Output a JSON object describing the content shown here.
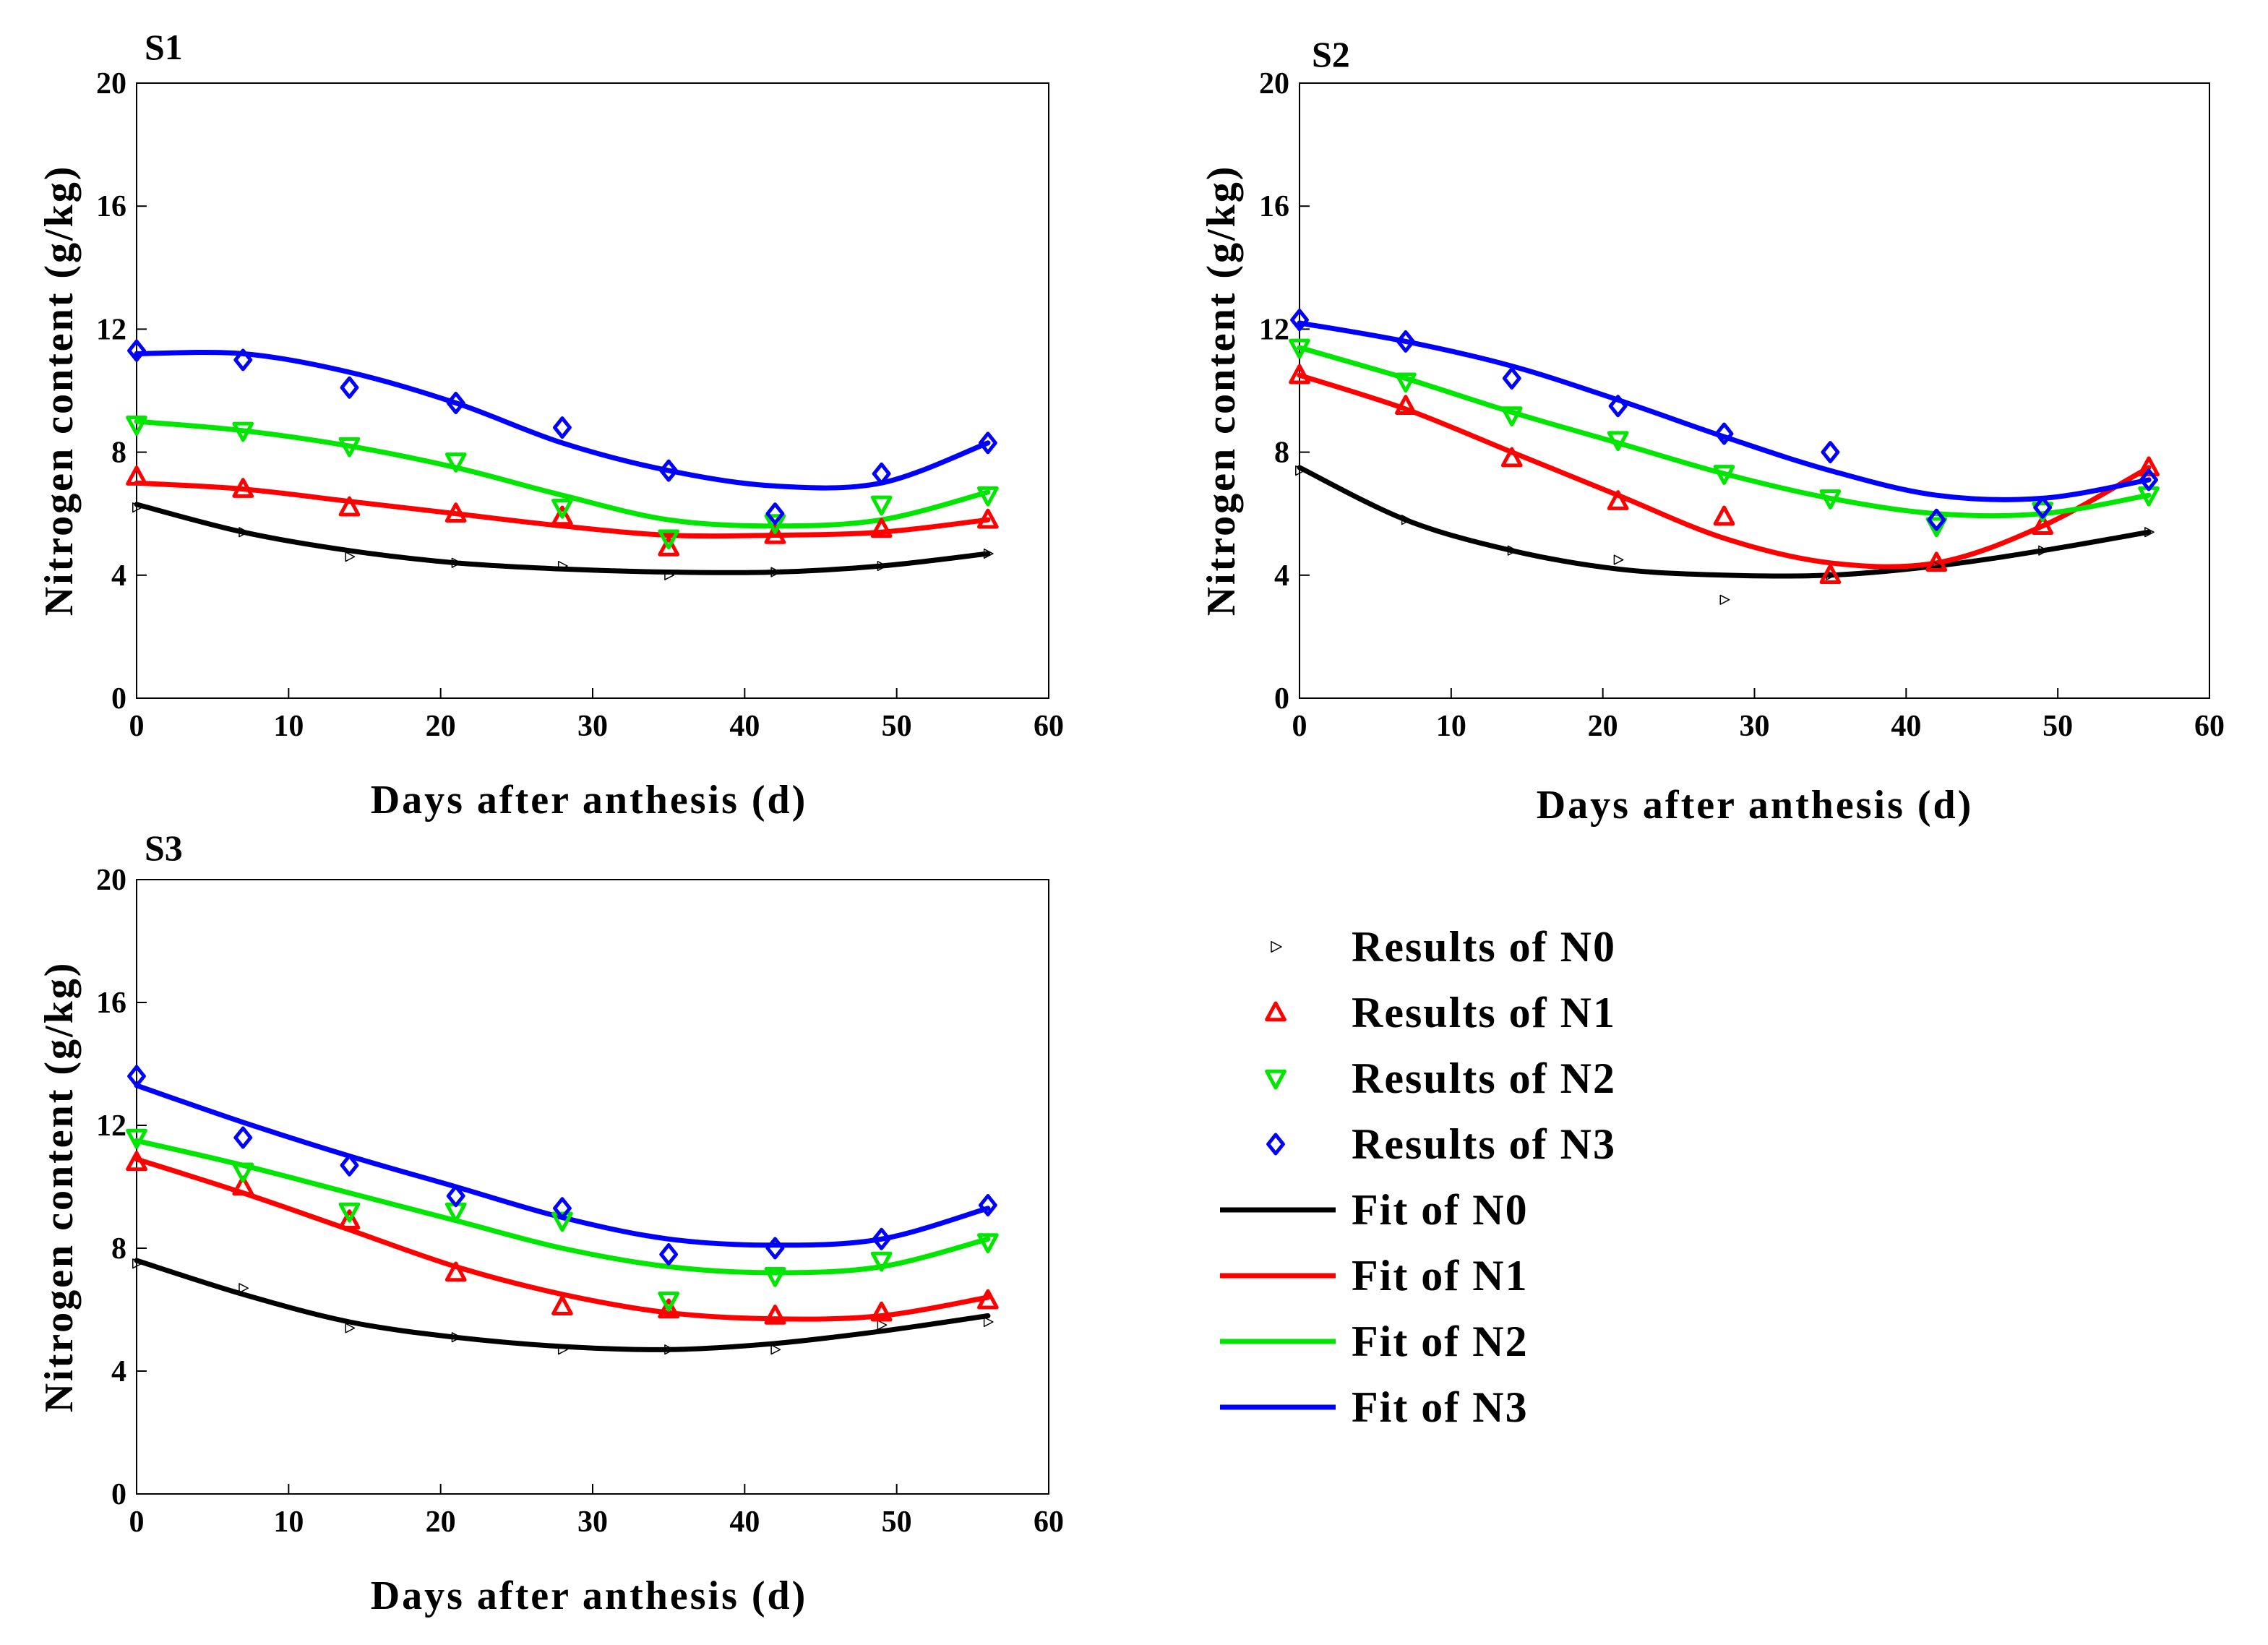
{
  "chart_data": [
    {
      "type": "line",
      "title": "S1",
      "xlabel": "Days after anthesis (d)",
      "ylabel": "Nitrogen content (g/kg)",
      "xlim": [
        0,
        60
      ],
      "ylim": [
        0,
        20
      ],
      "xticks": [
        0,
        10,
        20,
        30,
        40,
        50,
        60
      ],
      "yticks": [
        0,
        4,
        8,
        12,
        16,
        20
      ],
      "x": [
        0,
        7,
        14,
        21,
        28,
        35,
        42,
        49,
        56
      ],
      "series": [
        {
          "name": "N0",
          "results": [
            6.2,
            5.4,
            4.6,
            4.4,
            4.3,
            4.0,
            4.1,
            4.3,
            4.7
          ],
          "fit": [
            6.3,
            5.4,
            4.8,
            4.4,
            4.2,
            4.1,
            4.1,
            4.3,
            4.7
          ]
        },
        {
          "name": "N1",
          "results": [
            7.2,
            6.8,
            6.2,
            6.0,
            5.9,
            4.9,
            5.3,
            5.5,
            5.8
          ],
          "fit": [
            7.0,
            6.8,
            6.4,
            6.0,
            5.6,
            5.3,
            5.3,
            5.4,
            5.8
          ]
        },
        {
          "name": "N2",
          "results": [
            8.9,
            8.7,
            8.2,
            7.7,
            6.2,
            5.2,
            5.7,
            6.3,
            6.6
          ],
          "fit": [
            9.0,
            8.7,
            8.2,
            7.5,
            6.6,
            5.8,
            5.6,
            5.8,
            6.7
          ]
        },
        {
          "name": "N3",
          "results": [
            11.3,
            11.0,
            10.1,
            9.6,
            8.8,
            7.4,
            6.0,
            7.3,
            8.3
          ],
          "fit": [
            11.2,
            11.2,
            10.6,
            9.6,
            8.3,
            7.4,
            6.9,
            7.0,
            8.3
          ]
        }
      ]
    },
    {
      "type": "line",
      "title": "S2",
      "xlabel": "Days after anthesis (d)",
      "ylabel": "Nitrogen content (g/kg)",
      "xlim": [
        0,
        60
      ],
      "ylim": [
        0,
        20
      ],
      "xticks": [
        0,
        10,
        20,
        30,
        40,
        50,
        60
      ],
      "yticks": [
        0,
        4,
        8,
        12,
        16,
        20
      ],
      "x": [
        0,
        7,
        14,
        21,
        28,
        35,
        42,
        49,
        56
      ],
      "series": [
        {
          "name": "N0",
          "results": [
            7.4,
            5.8,
            4.8,
            4.5,
            3.2,
            4.0,
            4.3,
            4.8,
            5.4
          ],
          "fit": [
            7.5,
            5.8,
            4.8,
            4.2,
            4.0,
            4.0,
            4.3,
            4.8,
            5.4
          ]
        },
        {
          "name": "N1",
          "results": [
            10.5,
            9.5,
            7.8,
            6.4,
            5.9,
            4.0,
            4.4,
            5.6,
            7.5
          ],
          "fit": [
            10.5,
            9.4,
            8.0,
            6.6,
            5.2,
            4.4,
            4.4,
            5.6,
            7.5
          ]
        },
        {
          "name": "N2",
          "results": [
            11.4,
            10.3,
            9.2,
            8.4,
            7.3,
            6.5,
            5.6,
            6.1,
            6.6
          ],
          "fit": [
            11.4,
            10.4,
            9.3,
            8.3,
            7.3,
            6.5,
            6.0,
            6.0,
            6.6
          ]
        },
        {
          "name": "N3",
          "results": [
            12.3,
            11.6,
            10.4,
            9.5,
            8.6,
            8.0,
            5.8,
            6.2,
            7.1
          ],
          "fit": [
            12.2,
            11.6,
            10.8,
            9.7,
            8.5,
            7.4,
            6.6,
            6.5,
            7.1
          ]
        }
      ]
    },
    {
      "type": "line",
      "title": "S3",
      "xlabel": "Days after anthesis (d)",
      "ylabel": "Nitrogen content (g/kg)",
      "xlim": [
        0,
        60
      ],
      "ylim": [
        0,
        20
      ],
      "xticks": [
        0,
        10,
        20,
        30,
        40,
        50,
        60
      ],
      "yticks": [
        0,
        4,
        8,
        12,
        16,
        20
      ],
      "x": [
        0,
        7,
        14,
        21,
        28,
        35,
        42,
        49,
        56
      ],
      "series": [
        {
          "name": "N0",
          "results": [
            7.5,
            6.7,
            5.4,
            5.1,
            4.7,
            4.7,
            4.7,
            5.5,
            5.6
          ],
          "fit": [
            7.6,
            6.5,
            5.6,
            5.1,
            4.8,
            4.7,
            4.9,
            5.3,
            5.8
          ]
        },
        {
          "name": "N1",
          "results": [
            10.8,
            10.0,
            8.9,
            7.2,
            6.1,
            6.0,
            5.8,
            5.9,
            6.3
          ],
          "fit": [
            10.9,
            9.8,
            8.6,
            7.4,
            6.5,
            5.9,
            5.7,
            5.8,
            6.4
          ]
        },
        {
          "name": "N2",
          "results": [
            11.6,
            10.5,
            9.2,
            9.2,
            8.9,
            6.3,
            7.1,
            7.6,
            8.2
          ],
          "fit": [
            11.5,
            10.7,
            9.8,
            8.9,
            8.0,
            7.4,
            7.2,
            7.4,
            8.3
          ]
        },
        {
          "name": "N3",
          "results": [
            13.6,
            11.6,
            10.7,
            9.7,
            9.3,
            7.8,
            8.0,
            8.3,
            9.4
          ],
          "fit": [
            13.3,
            12.1,
            11.0,
            10.0,
            9.0,
            8.3,
            8.1,
            8.3,
            9.3
          ]
        }
      ]
    }
  ],
  "legend": {
    "results_entries": [
      "Results of  N0",
      "Results of  N1",
      "Results of  N2",
      "Results of  N3"
    ],
    "fit_entries": [
      "Fit of  N0",
      "Fit of  N1",
      "Fit of  N2",
      "Fit of  N3"
    ]
  },
  "colors": {
    "N0": "#000000",
    "N1": "#ff0000",
    "N2": "#00e600",
    "N3": "#0000ff",
    "axis": "#000000"
  },
  "markers": {
    "N0": "triangle-right",
    "N1": "triangle-up",
    "N2": "triangle-down",
    "N3": "diamond"
  }
}
